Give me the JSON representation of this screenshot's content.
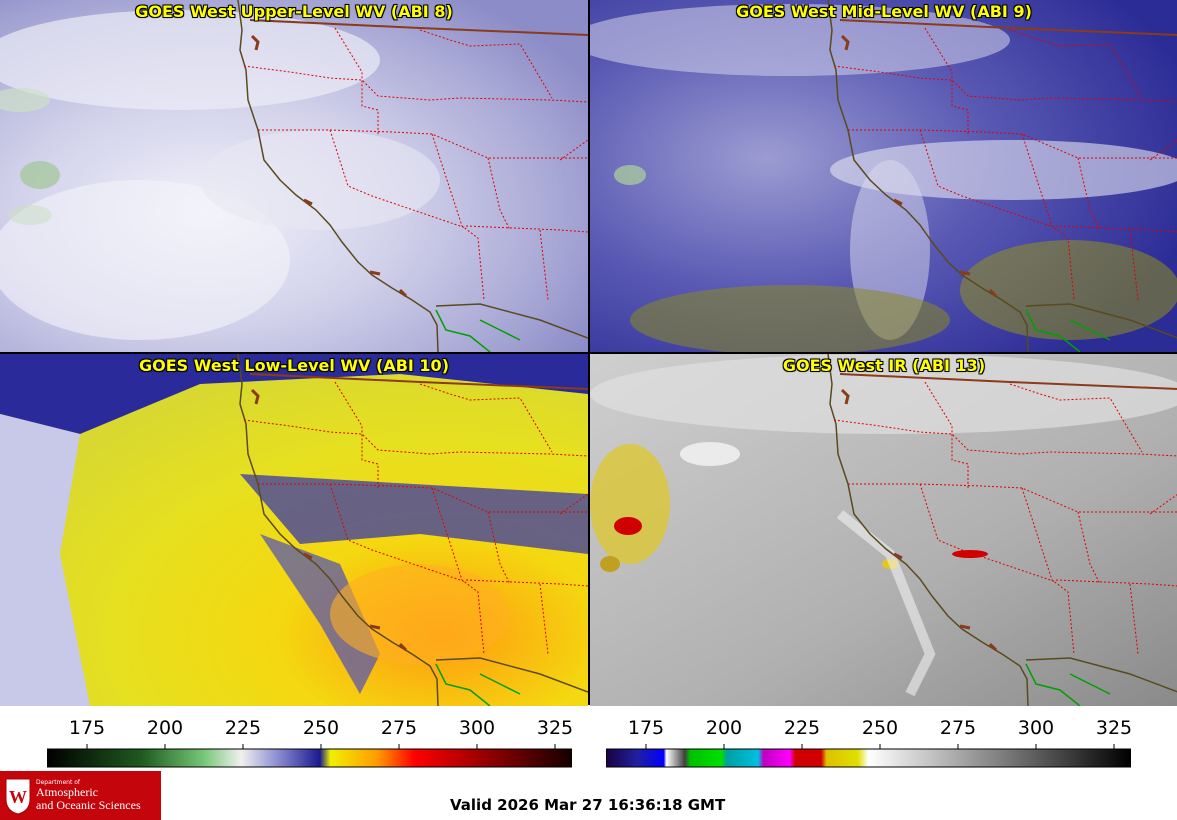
{
  "panels": {
    "upper": {
      "title": "GOES West Upper-Level WV (ABI 8)"
    },
    "mid": {
      "title": "GOES West Mid-Level WV (ABI 9)"
    },
    "low": {
      "title": "GOES West Low-Level WV (ABI 10)"
    },
    "ir": {
      "title": "GOES West IR (ABI 13)"
    }
  },
  "colorbar_left": {
    "ticks": [
      "175",
      "200",
      "225",
      "250",
      "275",
      "300",
      "325"
    ]
  },
  "colorbar_right": {
    "ticks": [
      "175",
      "200",
      "225",
      "250",
      "275",
      "300",
      "325"
    ]
  },
  "footer": {
    "valid_time": "Valid 2026 Mar 27 16:36:18 GMT"
  },
  "logo": {
    "dept_line": "Department of",
    "name_line1": "Atmospheric",
    "name_line2": "and Oceanic Sciences"
  }
}
